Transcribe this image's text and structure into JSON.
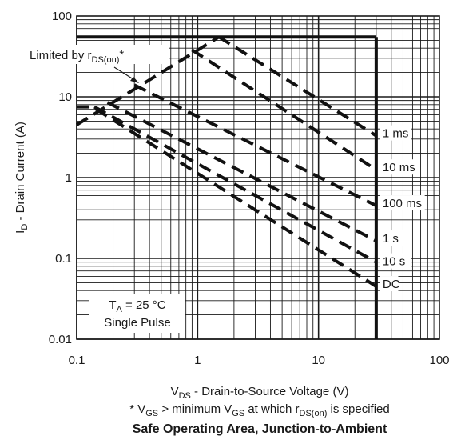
{
  "chart_data": {
    "type": "line",
    "title": "Safe Operating Area, Junction-to-Ambient",
    "xlabel": {
      "main": "V",
      "sub": "DS",
      "rest": " - Drain-to-Source Voltage (V)"
    },
    "ylabel": {
      "main": "I",
      "sub": "D",
      "rest": " - Drain Current (A)"
    },
    "xscale": "log",
    "yscale": "log",
    "xlim": [
      0.1,
      100
    ],
    "ylim": [
      0.01,
      100
    ],
    "xticks": [
      "0.1",
      "1",
      "10",
      "100"
    ],
    "yticks": [
      "0.01",
      "0.1",
      "1",
      "10",
      "100"
    ],
    "grid": true,
    "footnote": {
      "star": "* V",
      "s1": "GS",
      "mid": " >  minimum V",
      "s2": "GS",
      "mid2": " at which r",
      "s3": "DS(on)",
      "end": " is specified"
    },
    "annotations": {
      "limited": {
        "pre": "Limited by r",
        "sub": "DS(on)",
        "post": "*"
      },
      "temp": {
        "pre": "T",
        "sub": "A",
        "post": " = 25 °C"
      },
      "pulse": "Single Pulse"
    },
    "limits": {
      "current_limit_A": 55,
      "voltage_limit_V": 30
    },
    "series": [
      {
        "name": "1 ms",
        "points": [
          [
            1.5,
            55
          ],
          [
            30,
            3.3
          ]
        ]
      },
      {
        "name": "10 ms",
        "points": [
          [
            0.9,
            38
          ],
          [
            30,
            1.25
          ]
        ]
      },
      {
        "name": "100 ms",
        "points": [
          [
            0.3,
            14
          ],
          [
            30,
            0.45
          ]
        ]
      },
      {
        "name": "1 s",
        "points": [
          [
            0.18,
            8.5
          ],
          [
            30,
            0.165
          ]
        ]
      },
      {
        "name": "10 s",
        "points": [
          [
            0.14,
            7.5
          ],
          [
            30,
            0.09
          ]
        ]
      },
      {
        "name": "DC",
        "points": [
          [
            0.1,
            7.5
          ],
          [
            0.135,
            7.5
          ],
          [
            30,
            0.045
          ]
        ]
      }
    ],
    "rdson_line": {
      "points": [
        [
          0.1,
          4.5
        ],
        [
          1.5,
          55
        ]
      ]
    }
  }
}
